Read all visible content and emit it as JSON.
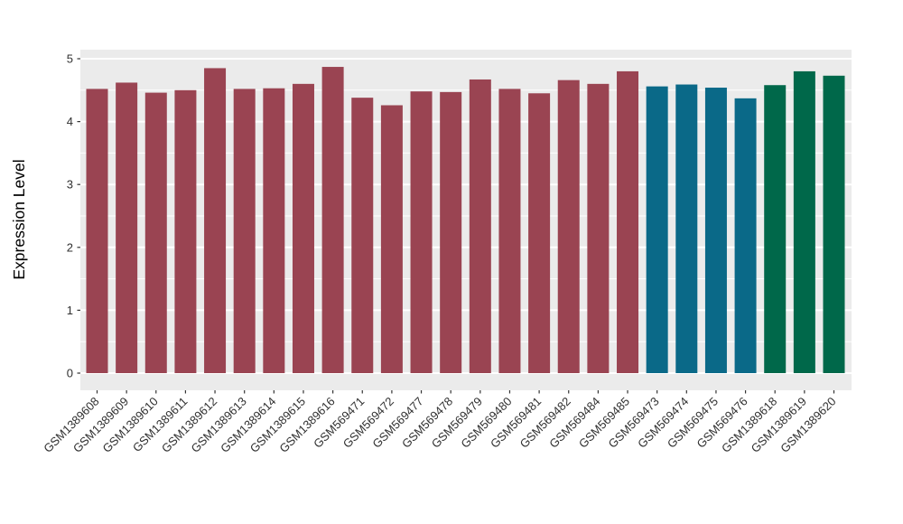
{
  "figure": {
    "background": "#FFFFFF",
    "panel_background": "#EBEBEB",
    "gridline_color": "#FFFFFF",
    "tick_color": "#333333",
    "axis_text_color": "#303030",
    "axis_title_color": "#000000"
  },
  "chart_data": {
    "type": "bar",
    "title": "",
    "xlabel": "",
    "ylabel": "Expression Level",
    "ylim": [
      0,
      5
    ],
    "yticks": [
      "0",
      "1",
      "2",
      "3",
      "4",
      "5"
    ],
    "minor_gridlines": [
      0.5,
      1.5,
      2.5,
      3.5,
      4.5
    ],
    "grid": "major and minor, white on gray panel",
    "legend_position": "none",
    "x_label_angle": 45,
    "groups": [
      {
        "name": "group-1",
        "color": "#9A4452"
      },
      {
        "name": "group-2",
        "color": "#0A6988"
      },
      {
        "name": "group-3",
        "color": "#00684A"
      }
    ],
    "bars": [
      {
        "label": "GSM1389608",
        "value": 4.52,
        "group": 0
      },
      {
        "label": "GSM1389609",
        "value": 4.62,
        "group": 0
      },
      {
        "label": "GSM1389610",
        "value": 4.46,
        "group": 0
      },
      {
        "label": "GSM1389611",
        "value": 4.5,
        "group": 0
      },
      {
        "label": "GSM1389612",
        "value": 4.85,
        "group": 0
      },
      {
        "label": "GSM1389613",
        "value": 4.52,
        "group": 0
      },
      {
        "label": "GSM1389614",
        "value": 4.53,
        "group": 0
      },
      {
        "label": "GSM1389615",
        "value": 4.6,
        "group": 0
      },
      {
        "label": "GSM1389616",
        "value": 4.87,
        "group": 0
      },
      {
        "label": "GSM569471",
        "value": 4.38,
        "group": 0
      },
      {
        "label": "GSM569472",
        "value": 4.26,
        "group": 0
      },
      {
        "label": "GSM569477",
        "value": 4.48,
        "group": 0
      },
      {
        "label": "GSM569478",
        "value": 4.47,
        "group": 0
      },
      {
        "label": "GSM569479",
        "value": 4.67,
        "group": 0
      },
      {
        "label": "GSM569480",
        "value": 4.52,
        "group": 0
      },
      {
        "label": "GSM569481",
        "value": 4.45,
        "group": 0
      },
      {
        "label": "GSM569482",
        "value": 4.66,
        "group": 0
      },
      {
        "label": "GSM569484",
        "value": 4.6,
        "group": 0
      },
      {
        "label": "GSM569485",
        "value": 4.8,
        "group": 0
      },
      {
        "label": "GSM569473",
        "value": 4.56,
        "group": 1
      },
      {
        "label": "GSM569474",
        "value": 4.59,
        "group": 1
      },
      {
        "label": "GSM569475",
        "value": 4.54,
        "group": 1
      },
      {
        "label": "GSM569476",
        "value": 4.37,
        "group": 1
      },
      {
        "label": "GSM1389618",
        "value": 4.58,
        "group": 2
      },
      {
        "label": "GSM1389619",
        "value": 4.8,
        "group": 2
      },
      {
        "label": "GSM1389620",
        "value": 4.73,
        "group": 2
      }
    ]
  }
}
